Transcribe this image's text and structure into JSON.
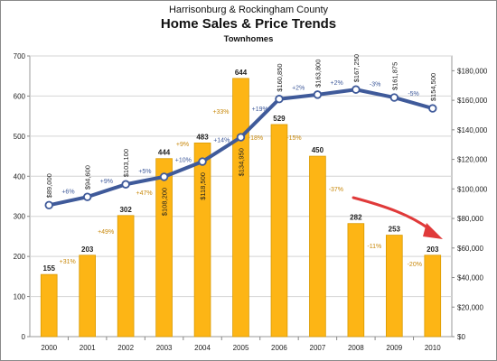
{
  "chart_data": {
    "type": "bar",
    "title": "Harrisonburg & Rockingham County",
    "subtitle": "Home Sales & Price Trends",
    "subtitle2": "Townhomes",
    "categories": [
      "2000",
      "2001",
      "2002",
      "2003",
      "2004",
      "2005",
      "2006",
      "2007",
      "2008",
      "2009",
      "2010"
    ],
    "ylim": [
      0,
      700
    ],
    "y_ticks": [
      "0",
      "100",
      "200",
      "300",
      "400",
      "500",
      "600",
      "700"
    ],
    "y2lim": [
      0,
      190000
    ],
    "y2_ticks": [
      "$0",
      "$20,000",
      "$40,000",
      "$60,000",
      "$80,000",
      "$100,000",
      "$120,000",
      "$140,000",
      "$160,000",
      "$180,000"
    ],
    "grid": true,
    "series": [
      {
        "values": [
          155,
          203,
          302,
          444,
          483,
          644,
          529,
          450,
          282,
          253,
          203
        ],
        "labels": [
          "155",
          "203",
          "302",
          "444",
          "483",
          "644",
          "529",
          "450",
          "282",
          "253",
          "203"
        ],
        "color": "#FDB515",
        "changes": [
          "",
          "+31%",
          "+49%",
          "+47%",
          "+9%",
          "+33%",
          "-18%",
          "-15%",
          "-37%",
          "-11%",
          "-20%"
        ]
      },
      {
        "type": "line",
        "axis": "right",
        "values": [
          89000,
          94600,
          103100,
          108200,
          118500,
          134950,
          160850,
          163800,
          167250,
          161875,
          154500
        ],
        "labels": [
          "$89,000",
          "$94,600",
          "$103,100",
          "$108,200",
          "$118,500",
          "$134,950",
          "$160,850",
          "$163,800",
          "$167,250",
          "$161,875",
          "$154,500"
        ],
        "color": "#3F5A9A",
        "changes": [
          "",
          "+6%",
          "+9%",
          "+5%",
          "+10%",
          "+14%",
          "+19%",
          "+2%",
          "+2%",
          "-3%",
          "-5%"
        ]
      }
    ],
    "annotation_arrow_color": "#E03A3A"
  }
}
